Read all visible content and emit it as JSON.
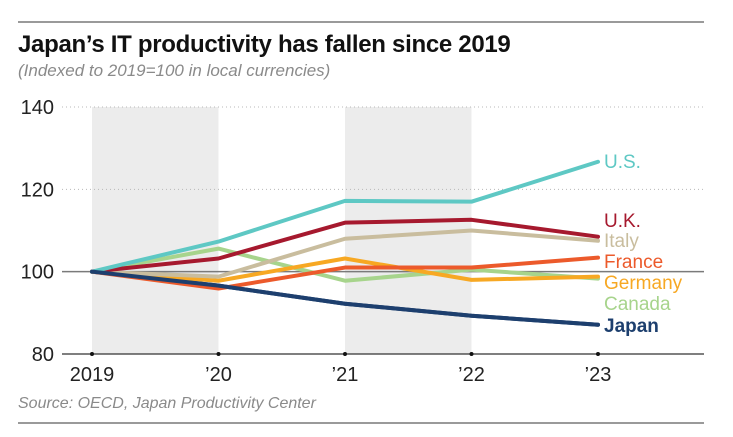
{
  "header": {
    "title": "Japan’s IT productivity has fallen since 2019",
    "subtitle": "(Indexed to 2019=100 in local currencies)"
  },
  "footer": {
    "source": "Source: OECD, Japan Productivity Center"
  },
  "chart_data": {
    "type": "line",
    "title": "Japan’s IT productivity has fallen since 2019",
    "subtitle": "(Indexed to 2019=100 in local currencies)",
    "xlabel": "",
    "ylabel": "",
    "x": [
      "2019",
      "’20",
      "’21",
      "’22",
      "’23"
    ],
    "ylim": [
      80,
      140
    ],
    "yticks": [
      80,
      100,
      120,
      140
    ],
    "grid": "dotted horizontal at 120 and 140; solid baseline at 100",
    "shaded_columns": [
      "2019-’20",
      "’21-’22"
    ],
    "legend": "direct labels at right end of lines",
    "series": [
      {
        "name": "U.S.",
        "color": "#5ec8c4",
        "bold": false,
        "values": [
          100,
          107.3,
          117.2,
          117.0,
          126.7
        ]
      },
      {
        "name": "U.K.",
        "color": "#a6192e",
        "bold": false,
        "values": [
          100,
          103.2,
          111.9,
          112.6,
          108.5
        ]
      },
      {
        "name": "Italy",
        "color": "#c9bd9e",
        "bold": false,
        "values": [
          100,
          98.8,
          108.0,
          110.0,
          107.5
        ]
      },
      {
        "name": "France",
        "color": "#ec5a2b",
        "bold": false,
        "values": [
          100,
          95.9,
          101.0,
          101.0,
          103.4
        ]
      },
      {
        "name": "Germany",
        "color": "#f7a823",
        "bold": false,
        "values": [
          100,
          97.8,
          103.2,
          98.0,
          98.8
        ]
      },
      {
        "name": "Canada",
        "color": "#a7d48c",
        "bold": false,
        "values": [
          100,
          105.6,
          97.8,
          100.5,
          98.3
        ]
      },
      {
        "name": "Japan",
        "color": "#1d3f6e",
        "bold": true,
        "values": [
          100,
          96.6,
          92.2,
          89.3,
          87.1
        ]
      }
    ]
  }
}
